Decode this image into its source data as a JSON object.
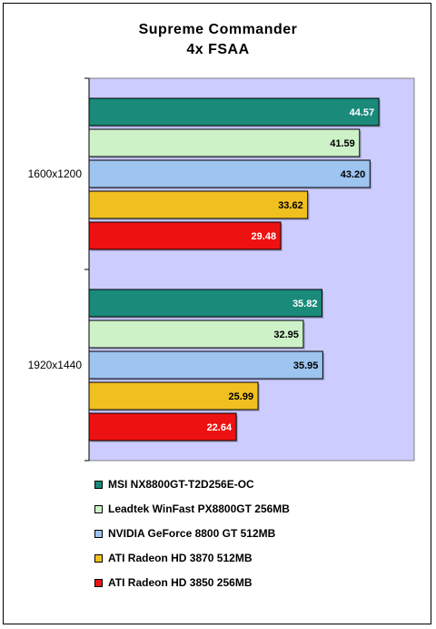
{
  "chart_data": {
    "type": "bar",
    "orientation": "horizontal",
    "title": "Supreme Commander",
    "subtitle": "4x FSAA",
    "categories": [
      "1600x1200",
      "1920x1440"
    ],
    "series": [
      {
        "name": "MSI NX8800GT-T2D256E-OC",
        "color": "#1a8a7a",
        "values": [
          44.57,
          35.82
        ],
        "label_color": "#ffffff"
      },
      {
        "name": "Leadtek WinFast PX8800GT 256MB",
        "color": "#cdf2c8",
        "values": [
          41.59,
          32.95
        ],
        "label_color": "#000000"
      },
      {
        "name": "NVIDIA GeForce 8800 GT 512MB",
        "color": "#9ec4f0",
        "values": [
          43.2,
          35.95
        ],
        "label_color": "#000000"
      },
      {
        "name": "ATI Radeon HD 3870 512MB",
        "color": "#f0c020",
        "values": [
          33.62,
          25.99
        ],
        "label_color": "#000000"
      },
      {
        "name": "ATI Radeon HD 3850 256MB",
        "color": "#ee1111",
        "values": [
          29.48,
          22.64
        ],
        "label_color": "#ffffff"
      }
    ],
    "data_labels": [
      [
        "44.57",
        "41.59",
        "43.20",
        "33.62",
        "29.48"
      ],
      [
        "35.82",
        "32.95",
        "35.95",
        "25.99",
        "22.64"
      ]
    ],
    "xlim": [
      0,
      50
    ],
    "plot_background": "#ccccff",
    "grid": false,
    "legend_position": "bottom"
  }
}
